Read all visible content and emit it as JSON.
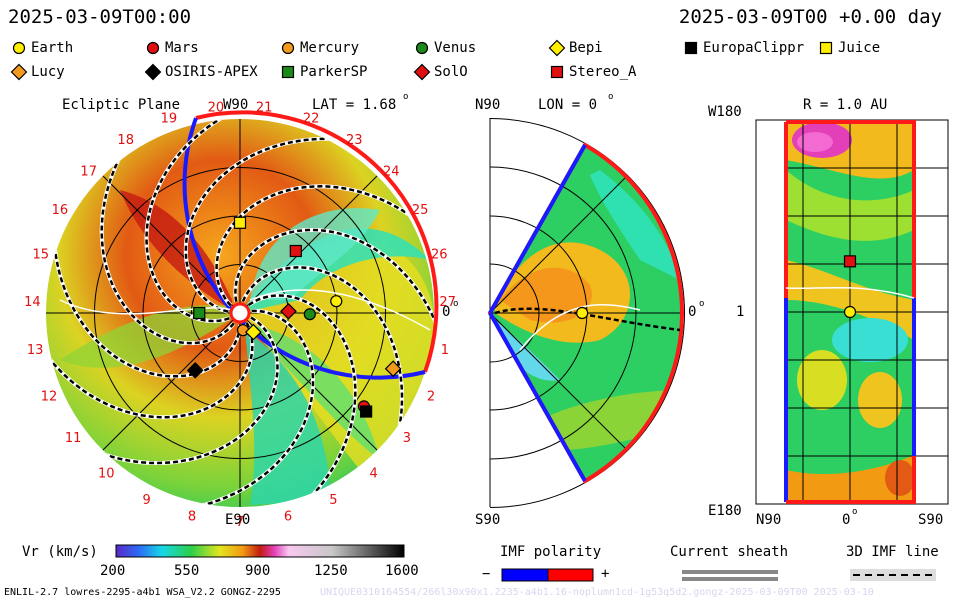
{
  "header": {
    "time_left": "2025-03-09T00:00",
    "time_right": "2025-03-09T00 +0.00 day"
  },
  "legend": [
    {
      "name": "Earth",
      "shape": "circle",
      "color": "#ffee00"
    },
    {
      "name": "Mars",
      "shape": "circle",
      "color": "#e01010"
    },
    {
      "name": "Mercury",
      "shape": "circle",
      "color": "#f39a1e"
    },
    {
      "name": "Venus",
      "shape": "circle",
      "color": "#1a8a1a"
    },
    {
      "name": "Bepi",
      "shape": "diamond",
      "color": "#ffee00"
    },
    {
      "name": "EuropaClippr",
      "shape": "square",
      "color": "#000000"
    },
    {
      "name": "Juice",
      "shape": "square",
      "color": "#ffee00"
    },
    {
      "name": "Lucy",
      "shape": "diamond",
      "color": "#f39a1e"
    },
    {
      "name": "OSIRIS-APEX",
      "shape": "diamond",
      "color": "#000000"
    },
    {
      "name": "ParkerSP",
      "shape": "square",
      "color": "#1a8a1a"
    },
    {
      "name": "SolO",
      "shape": "diamond",
      "color": "#e01010"
    },
    {
      "name": "Stereo_A",
      "shape": "square",
      "color": "#e01010"
    }
  ],
  "panels": {
    "ecliptic": {
      "title": "Ecliptic Plane",
      "lat_label": "LAT = 1.68",
      "degree_mark": "o",
      "top_label": "W90",
      "bottom_label": "E90",
      "right_label": "0"
    },
    "meridional": {
      "top_label": "N90",
      "bottom_label": "S90",
      "lon_label": "LON = 0",
      "degree_mark": "o",
      "right_label": "0"
    },
    "radial": {
      "title": "R = 1.0 AU",
      "top_label": "W180",
      "bottom_label": "E180",
      "mid_label": "1",
      "x_left": "N90",
      "x_mid": "0",
      "x_right": "S90"
    }
  },
  "chart_data": [
    {
      "type": "heatmap",
      "title": "Ecliptic Plane",
      "projection": "polar",
      "carrington_longitudes": [
        "1",
        "2",
        "3",
        "4",
        "5",
        "6",
        "7",
        "8",
        "9",
        "10",
        "11",
        "12",
        "13",
        "14",
        "15",
        "16",
        "17",
        "18",
        "19",
        "20",
        "21",
        "22",
        "23",
        "24",
        "25",
        "26",
        "27"
      ],
      "bodies": [
        {
          "name": "Earth",
          "r_au": 1.0,
          "angle_deg": 7
        },
        {
          "name": "Mars",
          "r_au": 1.6,
          "angle_deg": -37
        },
        {
          "name": "Mercury",
          "r_au": 0.18,
          "angle_deg": -80
        },
        {
          "name": "Venus",
          "r_au": 0.72,
          "angle_deg": -1
        },
        {
          "name": "Bepi",
          "r_au": 0.24,
          "angle_deg": -55
        },
        {
          "name": "EuropaClippr",
          "r_au": 1.65,
          "angle_deg": -38
        },
        {
          "name": "Juice",
          "r_au": 0.93,
          "angle_deg": 90
        },
        {
          "name": "Lucy",
          "r_au": 1.68,
          "angle_deg": -20
        },
        {
          "name": "OSIRIS-APEX",
          "r_au": 0.75,
          "angle_deg": -128
        },
        {
          "name": "ParkerSP",
          "r_au": 0.42,
          "angle_deg": 180
        },
        {
          "name": "SolO",
          "r_au": 0.5,
          "angle_deg": 2
        },
        {
          "name": "Stereo_A",
          "r_au": 0.86,
          "angle_deg": 48
        }
      ]
    },
    {
      "type": "heatmap",
      "title": "LON = 0",
      "projection": "meridional",
      "bodies": [
        {
          "name": "Earth",
          "r_au": 0.95,
          "lat_deg": 0
        }
      ]
    },
    {
      "type": "heatmap",
      "title": "R = 1.0 AU",
      "xlabel_ticks": [
        "N90",
        "0",
        "S90"
      ],
      "ylabel_ticks": [
        "W180",
        "1",
        "E180"
      ],
      "bodies": [
        {
          "name": "Earth",
          "lat_deg": 0,
          "lon_deg": 0
        },
        {
          "name": "Stereo_A",
          "lat_deg": 0,
          "lon_deg": 48
        }
      ]
    }
  ],
  "colorbar": {
    "label": "Vr (km/s)",
    "ticks": [
      "200",
      "550",
      "900",
      "1250",
      "1600"
    ]
  },
  "imf_polarity": {
    "label": "IMF polarity",
    "minus": "−",
    "plus": "+",
    "neg_color": "#0000ff",
    "pos_color": "#ff0000"
  },
  "current_sheath": {
    "label": "Current sheath"
  },
  "imf_line": {
    "label": "3D IMF line"
  },
  "footer": {
    "left": "ENLIL-2.7 lowres-2295-a4b1 WSA_V2.2 GONGZ-2295",
    "right": "UNIQUE0310164554/266l30x90x1.2235-a4b1.16-noplumn1cd-1g53q5d2.gongz-2025-03-09T00 2025-03-10"
  }
}
